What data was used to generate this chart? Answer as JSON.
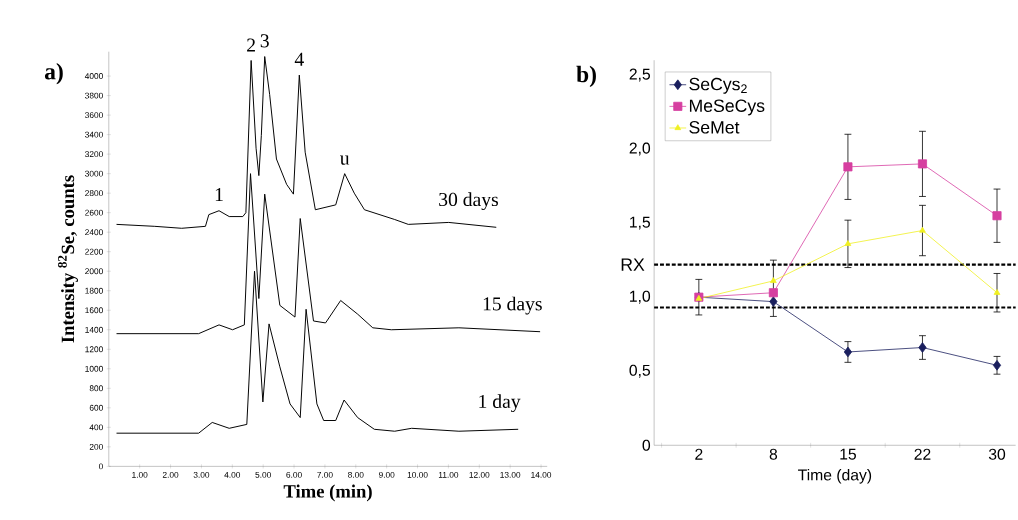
{
  "chart_data": [
    {
      "type": "line",
      "title": "a)",
      "xlabel": "Time (min)",
      "ylabel": "Intensity $^{82}$Se, counts",
      "xlim": [
        0,
        14.2
      ],
      "ylim": [
        0,
        4250
      ],
      "xticks": [
        {
          "value": 1,
          "label": "1.00"
        },
        {
          "value": 2,
          "label": "2.00"
        },
        {
          "value": 3,
          "label": "3.00"
        },
        {
          "value": 4,
          "label": "4.00"
        },
        {
          "value": 5,
          "label": "5.00"
        },
        {
          "value": 6,
          "label": "6.00"
        },
        {
          "value": 7,
          "label": "7.00"
        },
        {
          "value": 8,
          "label": "8.00"
        },
        {
          "value": 9,
          "label": "9.00"
        },
        {
          "value": 10,
          "label": "10.00"
        },
        {
          "value": 11,
          "label": "11.00"
        },
        {
          "value": 12,
          "label": "12.00"
        },
        {
          "value": 13,
          "label": "13.00"
        },
        {
          "value": 14,
          "label": "14.00"
        }
      ],
      "yticks": [
        0,
        200,
        400,
        600,
        800,
        1000,
        1200,
        1400,
        1600,
        1800,
        2000,
        2200,
        2400,
        2600,
        2800,
        3000,
        3200,
        3400,
        3600,
        3800,
        4000
      ],
      "legend": false,
      "series": [
        {
          "name": "30 days",
          "color": "#000000",
          "x": [
            0.25,
            1.49,
            2.36,
            3.13,
            3.24,
            3.57,
            3.9,
            4.34,
            4.44,
            4.61,
            4.77,
            4.86,
            4.94,
            5.05,
            5.21,
            5.43,
            5.76,
            5.98,
            6.17,
            6.36,
            6.69,
            7.35,
            7.64,
            7.95,
            8.28,
            9.26,
            9.7,
            11.01,
            12.55
          ],
          "values": [
            2480,
            2460,
            2440,
            2460,
            2580,
            2620,
            2560,
            2560,
            2600,
            4160,
            3260,
            2980,
            3390,
            4200,
            3810,
            3150,
            2890,
            2790,
            4010,
            3220,
            2630,
            2680,
            3000,
            2800,
            2630,
            2530,
            2480,
            2500,
            2450
          ]
        },
        {
          "name": "15 days",
          "color": "#000000",
          "x": [
            0.25,
            2.91,
            3.57,
            4.01,
            4.39,
            4.59,
            4.86,
            5.05,
            5.54,
            6.03,
            6.2,
            6.63,
            7.02,
            7.51,
            8.06,
            8.55,
            9.15,
            11.34,
            13.97
          ],
          "values": [
            1360,
            1360,
            1450,
            1400,
            1450,
            3000,
            1720,
            2790,
            1650,
            1530,
            2540,
            1490,
            1470,
            1700,
            1560,
            1420,
            1400,
            1420,
            1380
          ]
        },
        {
          "name": "1 day",
          "color": "#000000",
          "x": [
            0.25,
            2.91,
            3.35,
            3.9,
            4.47,
            4.72,
            4.99,
            5.19,
            5.54,
            5.87,
            6.2,
            6.39,
            6.74,
            6.96,
            7.35,
            7.62,
            8.06,
            8.6,
            9.26,
            9.81,
            11.34,
            13.26
          ],
          "values": [
            340,
            340,
            450,
            390,
            430,
            2000,
            660,
            1460,
            1020,
            640,
            500,
            1610,
            640,
            470,
            470,
            680,
            500,
            380,
            360,
            390,
            360,
            380
          ]
        }
      ],
      "annotations": [
        {
          "text": "1",
          "x": 3.57,
          "y": 2624
        },
        {
          "text": "2",
          "x": 4.61,
          "y": 4156
        },
        {
          "text": "3",
          "x": 5.05,
          "y": 4198
        },
        {
          "text": "4",
          "x": 6.17,
          "y": 4010
        },
        {
          "text": "u",
          "x": 7.64,
          "y": 2995
        }
      ]
    },
    {
      "type": "line",
      "title": "b)",
      "xlabel": "Time (day)",
      "categories": [
        "2",
        "8",
        "15",
        "22",
        "30"
      ],
      "ylim": [
        0,
        2.6
      ],
      "yticks": [
        0,
        {
          "value": 0.5,
          "label": "0,5"
        },
        {
          "value": 1.0,
          "label": "1,0"
        },
        {
          "value": 1.5,
          "label": "1,5"
        },
        {
          "value": 2.0,
          "label": "2,0"
        },
        {
          "value": 2.5,
          "label": "2,5"
        }
      ],
      "legend": "top left",
      "series": [
        {
          "name": "SeCys$_{2}$",
          "color": "#1a1f5e",
          "marker": "diamond",
          "values": [
            1.0,
            0.97,
            0.63,
            0.66,
            0.54
          ],
          "errors": [
            0.12,
            null,
            0.07,
            0.08,
            0.06
          ]
        },
        {
          "name": "MeSeCys",
          "color": "#d63fa0",
          "marker": "square",
          "values": [
            1.0,
            1.03,
            1.88,
            1.9,
            1.55
          ],
          "errors": [
            null,
            null,
            0.22,
            0.22,
            0.18
          ]
        },
        {
          "name": "SeMet",
          "color": "#f0f020",
          "marker": "triangle",
          "values": [
            0.99,
            1.11,
            1.36,
            1.45,
            1.03
          ],
          "errors": [
            null,
            [
              0.87,
              1.25
            ],
            0.16,
            0.17,
            0.13
          ]
        }
      ],
      "ref_lines": [
        {
          "axis": "y",
          "value": 1.22,
          "label": "RX",
          "color": "#000000",
          "line_style": "dashed"
        },
        {
          "axis": "y",
          "value": 0.93,
          "color": "#000000",
          "line_style": "dashed"
        }
      ]
    }
  ]
}
